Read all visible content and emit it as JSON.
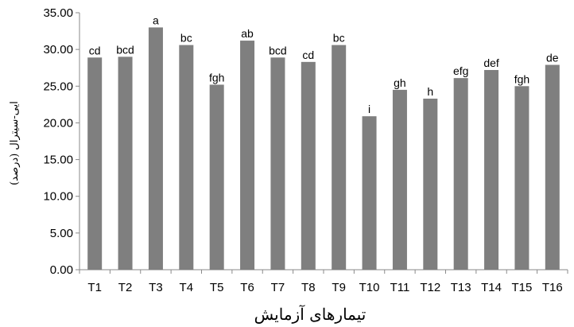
{
  "chart_data": {
    "type": "bar",
    "categories": [
      "T1",
      "T2",
      "T3",
      "T4",
      "T5",
      "T6",
      "T7",
      "T8",
      "T9",
      "T10",
      "T11",
      "T12",
      "T13",
      "T14",
      "T15",
      "T16"
    ],
    "values": [
      28.9,
      29.0,
      33.0,
      30.6,
      25.2,
      31.2,
      28.9,
      28.3,
      30.6,
      20.9,
      24.5,
      23.3,
      26.1,
      27.2,
      25.0,
      27.9
    ],
    "data_labels": [
      "cd",
      "bcd",
      "a",
      "bc",
      "fgh",
      "ab",
      "bcd",
      "cd",
      "bc",
      "i",
      "gh",
      "h",
      "efg",
      "def",
      "fgh",
      "de"
    ],
    "title": "",
    "xlabel": "تیمارهای آزمایش",
    "ylabel": "ایی-سیترال (درصد)",
    "ylim": [
      0,
      35
    ],
    "yticks": [
      "0.00",
      "5.00",
      "10.00",
      "15.00",
      "20.00",
      "25.00",
      "30.00",
      "35.00"
    ],
    "grid": false,
    "colors": {
      "bar": "#7f7f7f",
      "axis": "#8a8a8a"
    }
  }
}
